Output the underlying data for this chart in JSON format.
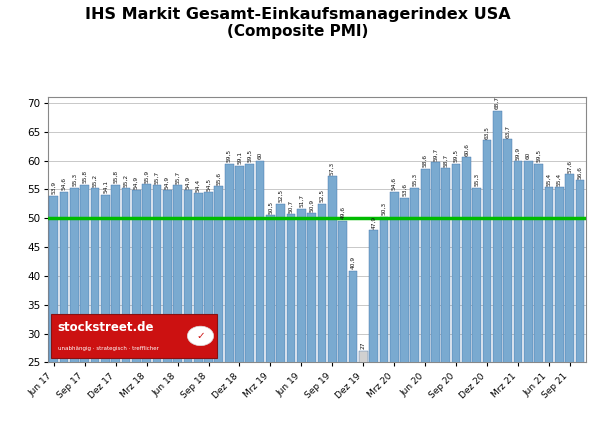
{
  "title_line1": "IHS Markit Gesamt-Einkaufsmanagerindex USA",
  "title_line2": "(Composite PMI)",
  "values": [
    53.9,
    54.6,
    55.3,
    55.8,
    55.2,
    54.1,
    55.8,
    55.2,
    54.9,
    55.9,
    55.7,
    54.9,
    55.7,
    54.9,
    54.4,
    54.5,
    55.6,
    59.5,
    59.1,
    59.5,
    60.0,
    50.5,
    52.5,
    50.7,
    51.7,
    50.9,
    52.5,
    57.3,
    49.6,
    40.9,
    27.0,
    47.9,
    50.3,
    54.6,
    53.6,
    55.3,
    58.6,
    59.7,
    58.7,
    59.5,
    60.6,
    55.3,
    63.5,
    68.7,
    63.7,
    59.9,
    60.0,
    59.5,
    55.4,
    55.4,
    57.6,
    56.6
  ],
  "labels": [
    "53,9",
    "54,6",
    "55,3",
    "55,8",
    "55,2",
    "54,1",
    "55,8",
    "55,2",
    "54,9",
    "55,9",
    "55,7",
    "54,9",
    "55,7",
    "54,9",
    "54,4",
    "54,5",
    "55,6",
    "59,5",
    "59,1",
    "59,5",
    "60",
    "50,5",
    "52,5",
    "50,7",
    "51,7",
    "50,9",
    "52,5",
    "57,3",
    "49,6",
    "40,9",
    "27",
    "47,9",
    "50,3",
    "54,6",
    "53,6",
    "55,3",
    "58,6",
    "59,7",
    "58,7",
    "59,5",
    "60,6",
    "55,3",
    "63,5",
    "68,7",
    "63,7",
    "59,9",
    "60",
    "59,5",
    "55,4",
    "55,4",
    "57,6",
    "56,6"
  ],
  "xtick_labels": [
    "Jun 17",
    "Sep 17",
    "Dez 17",
    "Mrz 18",
    "Jun 18",
    "Sep 18",
    "Dez 18",
    "Mrz 19",
    "Jun 19",
    "Sep 19",
    "Dez 19",
    "Mrz 20",
    "Jun 20",
    "Sep 20",
    "Dez 20",
    "Mrz 21",
    "Jun 21",
    "Sep 21"
  ],
  "xtick_bar_indices": [
    0,
    3,
    6,
    9,
    12,
    15,
    18,
    21,
    24,
    27,
    30,
    33,
    36,
    39,
    42,
    45,
    48,
    50
  ],
  "ylim_min": 25,
  "ylim_max": 71,
  "yticks": [
    25,
    30,
    35,
    40,
    45,
    50,
    55,
    60,
    65,
    70
  ],
  "hline_y": 50,
  "hline_color": "#00BB00",
  "bar_color_normal": "#7AAAD0",
  "bar_color_low": "#D0D0D0",
  "bar_edge_color": "#3B6EA5",
  "background_color": "#FFFFFF",
  "grid_color": "#C8C8C8",
  "logo_red": "#CC1111",
  "logo_dark_red": "#881111"
}
